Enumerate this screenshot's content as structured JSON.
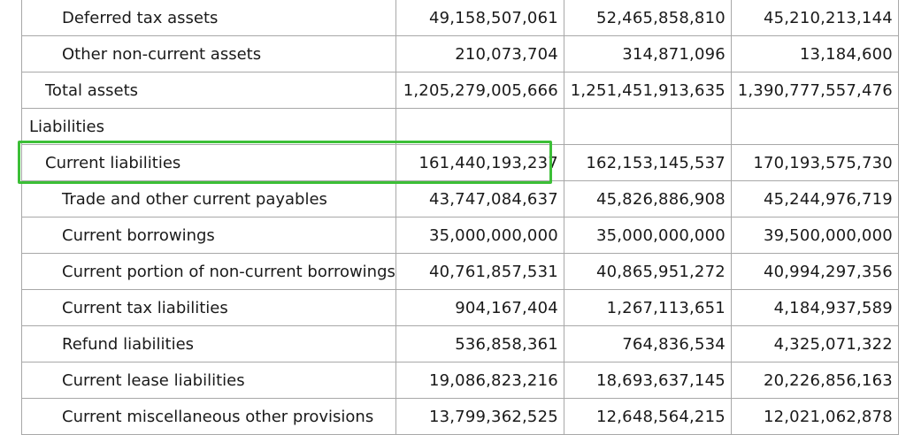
{
  "rows": [
    {
      "label": "Deferred tax assets",
      "values": [
        "49,158,507,061",
        "52,465,858,810",
        "45,210,213,144"
      ]
    },
    {
      "label": "Other non-current assets",
      "values": [
        "210,073,704",
        "314,871,096",
        "13,184,600"
      ]
    },
    {
      "label": "Total assets",
      "values": [
        "1,205,279,005,666",
        "1,251,451,913,635",
        "1,390,777,557,476"
      ]
    },
    {
      "label": "Liabilities",
      "values": [
        "",
        "",
        ""
      ]
    },
    {
      "label": "Current liabilities",
      "values": [
        "161,440,193,237",
        "162,153,145,537",
        "170,193,575,730"
      ]
    },
    {
      "label": "Trade and other current payables",
      "values": [
        "43,747,084,637",
        "45,826,886,908",
        "45,244,976,719"
      ]
    },
    {
      "label": "Current borrowings",
      "values": [
        "35,000,000,000",
        "35,000,000,000",
        "39,500,000,000"
      ]
    },
    {
      "label": "Current portion of non-current borrowings",
      "values": [
        "40,761,857,531",
        "40,865,951,272",
        "40,994,297,356"
      ]
    },
    {
      "label": "Current tax liabilities",
      "values": [
        "904,167,404",
        "1,267,113,651",
        "4,184,937,589"
      ]
    },
    {
      "label": "Refund liabilities",
      "values": [
        "536,858,361",
        "764,836,534",
        "4,325,071,322"
      ]
    },
    {
      "label": "Current lease liabilities",
      "values": [
        "19,086,823,216",
        "18,693,637,145",
        "20,226,856,163"
      ]
    },
    {
      "label": "Current miscellaneous other provisions",
      "values": [
        "13,799,362,525",
        "12,648,564,215",
        "12,021,062,878"
      ]
    }
  ],
  "highlight_color": "#3cbf37"
}
